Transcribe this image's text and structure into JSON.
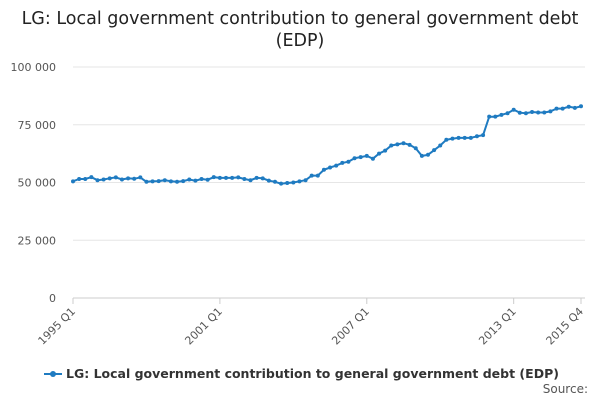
{
  "chart_data": {
    "type": "line",
    "title": "LG: Local government contribution to general government debt (EDP)",
    "xlabel": "",
    "ylabel": "",
    "ylim": [
      0,
      100000
    ],
    "yticks": [
      0,
      25000,
      50000,
      75000,
      100000
    ],
    "ytick_labels": [
      "0",
      "25 000",
      "50 000",
      "75 000",
      "100 000"
    ],
    "xtick_labels": [
      "1995 Q1",
      "2001 Q1",
      "2007 Q1",
      "2013 Q1",
      "2015 Q4"
    ],
    "grid": true,
    "legend_position": "bottom",
    "color": "#1f7bc1",
    "x_start": "1995 Q1",
    "x_end": "2015 Q4",
    "series": [
      {
        "name": "LG: Local government contribution to general government debt (EDP)",
        "values": [
          50500,
          51500,
          51500,
          52300,
          51000,
          51300,
          51800,
          52200,
          51300,
          51800,
          51600,
          52200,
          50300,
          50500,
          50600,
          51000,
          50500,
          50300,
          50600,
          51300,
          50800,
          51500,
          51200,
          52300,
          52000,
          52000,
          52000,
          52200,
          51500,
          51000,
          52000,
          51800,
          50800,
          50300,
          49500,
          49800,
          50000,
          50500,
          51000,
          53000,
          53000,
          55500,
          56500,
          57300,
          58500,
          59000,
          60500,
          61000,
          61500,
          60300,
          62500,
          63800,
          66000,
          66500,
          67000,
          66300,
          64800,
          61500,
          62000,
          64000,
          66000,
          68500,
          69000,
          69300,
          69300,
          69300,
          70000,
          70500,
          78500,
          78500,
          79300,
          80000,
          81500,
          80200,
          80000,
          80500,
          80300,
          80300,
          80800,
          82000,
          82000,
          82800,
          82300,
          83000
        ]
      }
    ]
  },
  "source_label": "Source:"
}
